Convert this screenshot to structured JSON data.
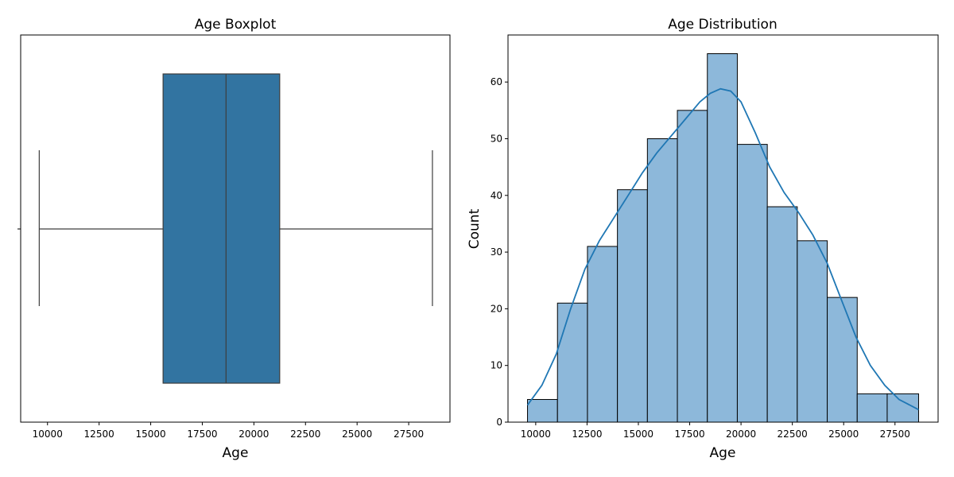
{
  "chart_data": [
    {
      "type": "boxplot",
      "title": "Age Boxplot",
      "xlabel": "Age",
      "ylabel": "",
      "xlim": [
        8700,
        29500
      ],
      "xticks": [
        10000,
        12500,
        15000,
        17500,
        20000,
        22500,
        25000,
        27500
      ],
      "box": {
        "whisker_low": 9600,
        "q1": 15600,
        "median": 18650,
        "q3": 21250,
        "whisker_high": 28650
      },
      "color": "#3274a1"
    },
    {
      "type": "bar",
      "subtype": "histogram",
      "title": "Age Distribution",
      "xlabel": "Age",
      "ylabel": "Count",
      "xlim": [
        8650,
        29600
      ],
      "ylim": [
        0,
        68.3
      ],
      "xticks": [
        10000,
        12500,
        15000,
        17500,
        20000,
        22500,
        25000,
        27500
      ],
      "yticks": [
        0,
        10,
        20,
        30,
        40,
        50,
        60
      ],
      "bin_edges": [
        9600,
        11060,
        12520,
        13980,
        15440,
        16900,
        18360,
        19820,
        21280,
        22740,
        24200,
        25660,
        27120,
        28650
      ],
      "counts": [
        4,
        21,
        31,
        41,
        50,
        55,
        65,
        49,
        38,
        32,
        22,
        5,
        5
      ],
      "kde": {
        "x": [
          9600,
          10300,
          11000,
          11700,
          12400,
          13100,
          13800,
          14500,
          15200,
          15900,
          16600,
          17300,
          18000,
          18500,
          19000,
          19500,
          20000,
          20700,
          21400,
          22100,
          22800,
          23500,
          24200,
          24900,
          25600,
          26300,
          27000,
          27700,
          28650
        ],
        "y": [
          3.0,
          6.5,
          12.0,
          20.0,
          27.0,
          32.0,
          36.0,
          40.0,
          44.0,
          47.5,
          50.5,
          53.5,
          56.5,
          58.0,
          58.8,
          58.4,
          56.5,
          51.0,
          45.0,
          40.5,
          37.0,
          33.0,
          28.0,
          21.5,
          15.0,
          10.0,
          6.5,
          4.0,
          2.2
        ]
      },
      "bar_color": "#8db8da",
      "line_color": "#1f77b4"
    }
  ]
}
